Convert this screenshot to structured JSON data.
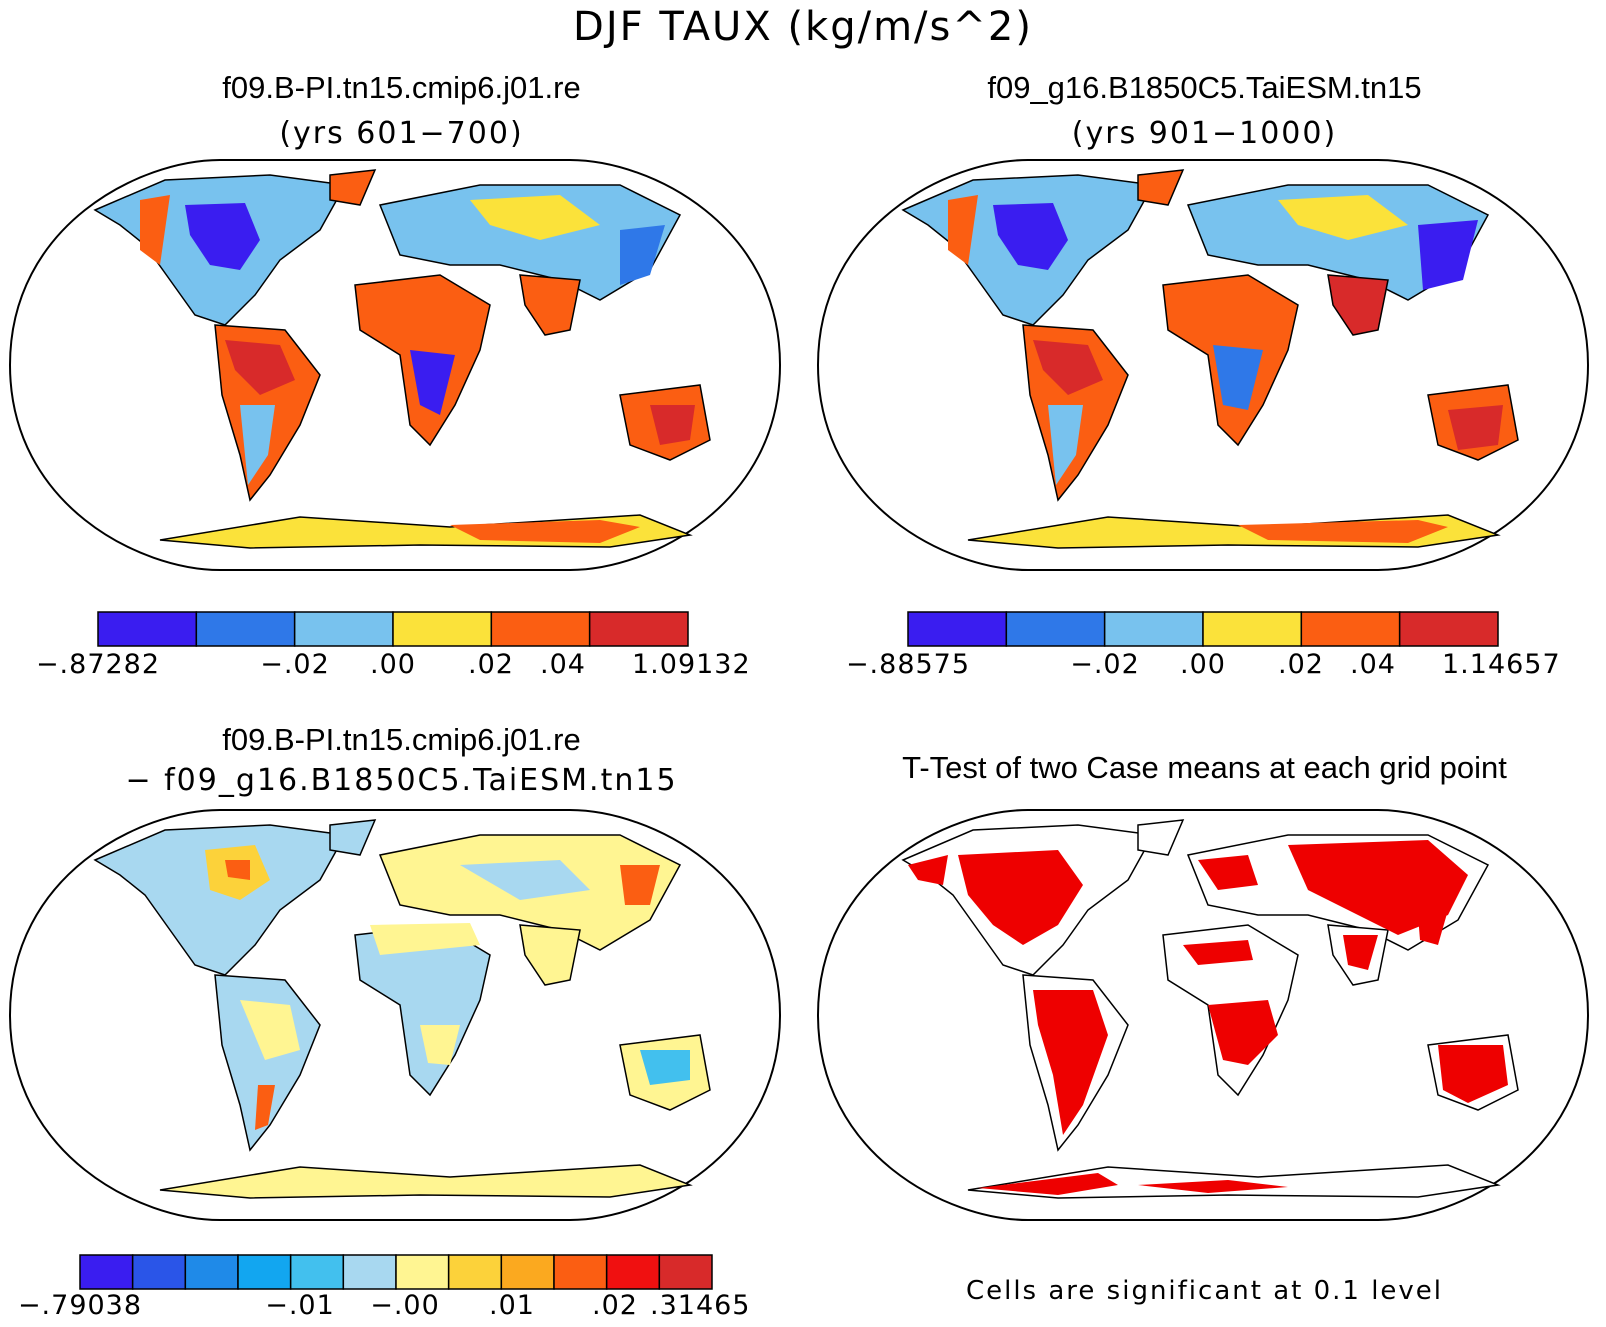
{
  "title": "DJF TAUX (kg/m/s^2)",
  "panels": [
    {
      "title": "f09.B-PI.tn15.cmip6.j01.re",
      "subtitle": "(yrs 601−700)",
      "colorbar": {
        "colors": [
          "#3a1df0",
          "#2f78e8",
          "#78c2ee",
          "#fbe23a",
          "#fb5e12",
          "#d82a2a"
        ],
        "labels": [
          "−.87282",
          "−.02",
          ".00",
          ".02",
          ".04",
          "1.09132"
        ]
      }
    },
    {
      "title": "f09_g16.B1850C5.TaiESM.tn15",
      "subtitle": "(yrs 901−1000)",
      "colorbar": {
        "colors": [
          "#3a1df0",
          "#2f78e8",
          "#78c2ee",
          "#fbe23a",
          "#fb5e12",
          "#d82a2a"
        ],
        "labels": [
          "−.88575",
          "−.02",
          ".00",
          ".02",
          ".04",
          "1.14657"
        ]
      }
    },
    {
      "title": "f09.B-PI.tn15.cmip6.j01.re",
      "subtitle": "− f09_g16.B1850C5.TaiESM.tn15",
      "colorbar": {
        "colors": [
          "#3a1df0",
          "#2a55e8",
          "#1f8ae8",
          "#12a6f0",
          "#42c0ee",
          "#a8d8f0",
          "#fff592",
          "#fcd23a",
          "#fba91f",
          "#fb5e12",
          "#f01010",
          "#d82a2a"
        ],
        "labels": [
          "−.79038",
          "−.01",
          "−.00",
          ".01",
          ".02",
          ".31465"
        ]
      }
    },
    {
      "title": "T-Test of two Case means at each grid point",
      "note": "Cells are significant at 0.1 level",
      "colors": {
        "significant": "#ee0000"
      }
    }
  ]
}
